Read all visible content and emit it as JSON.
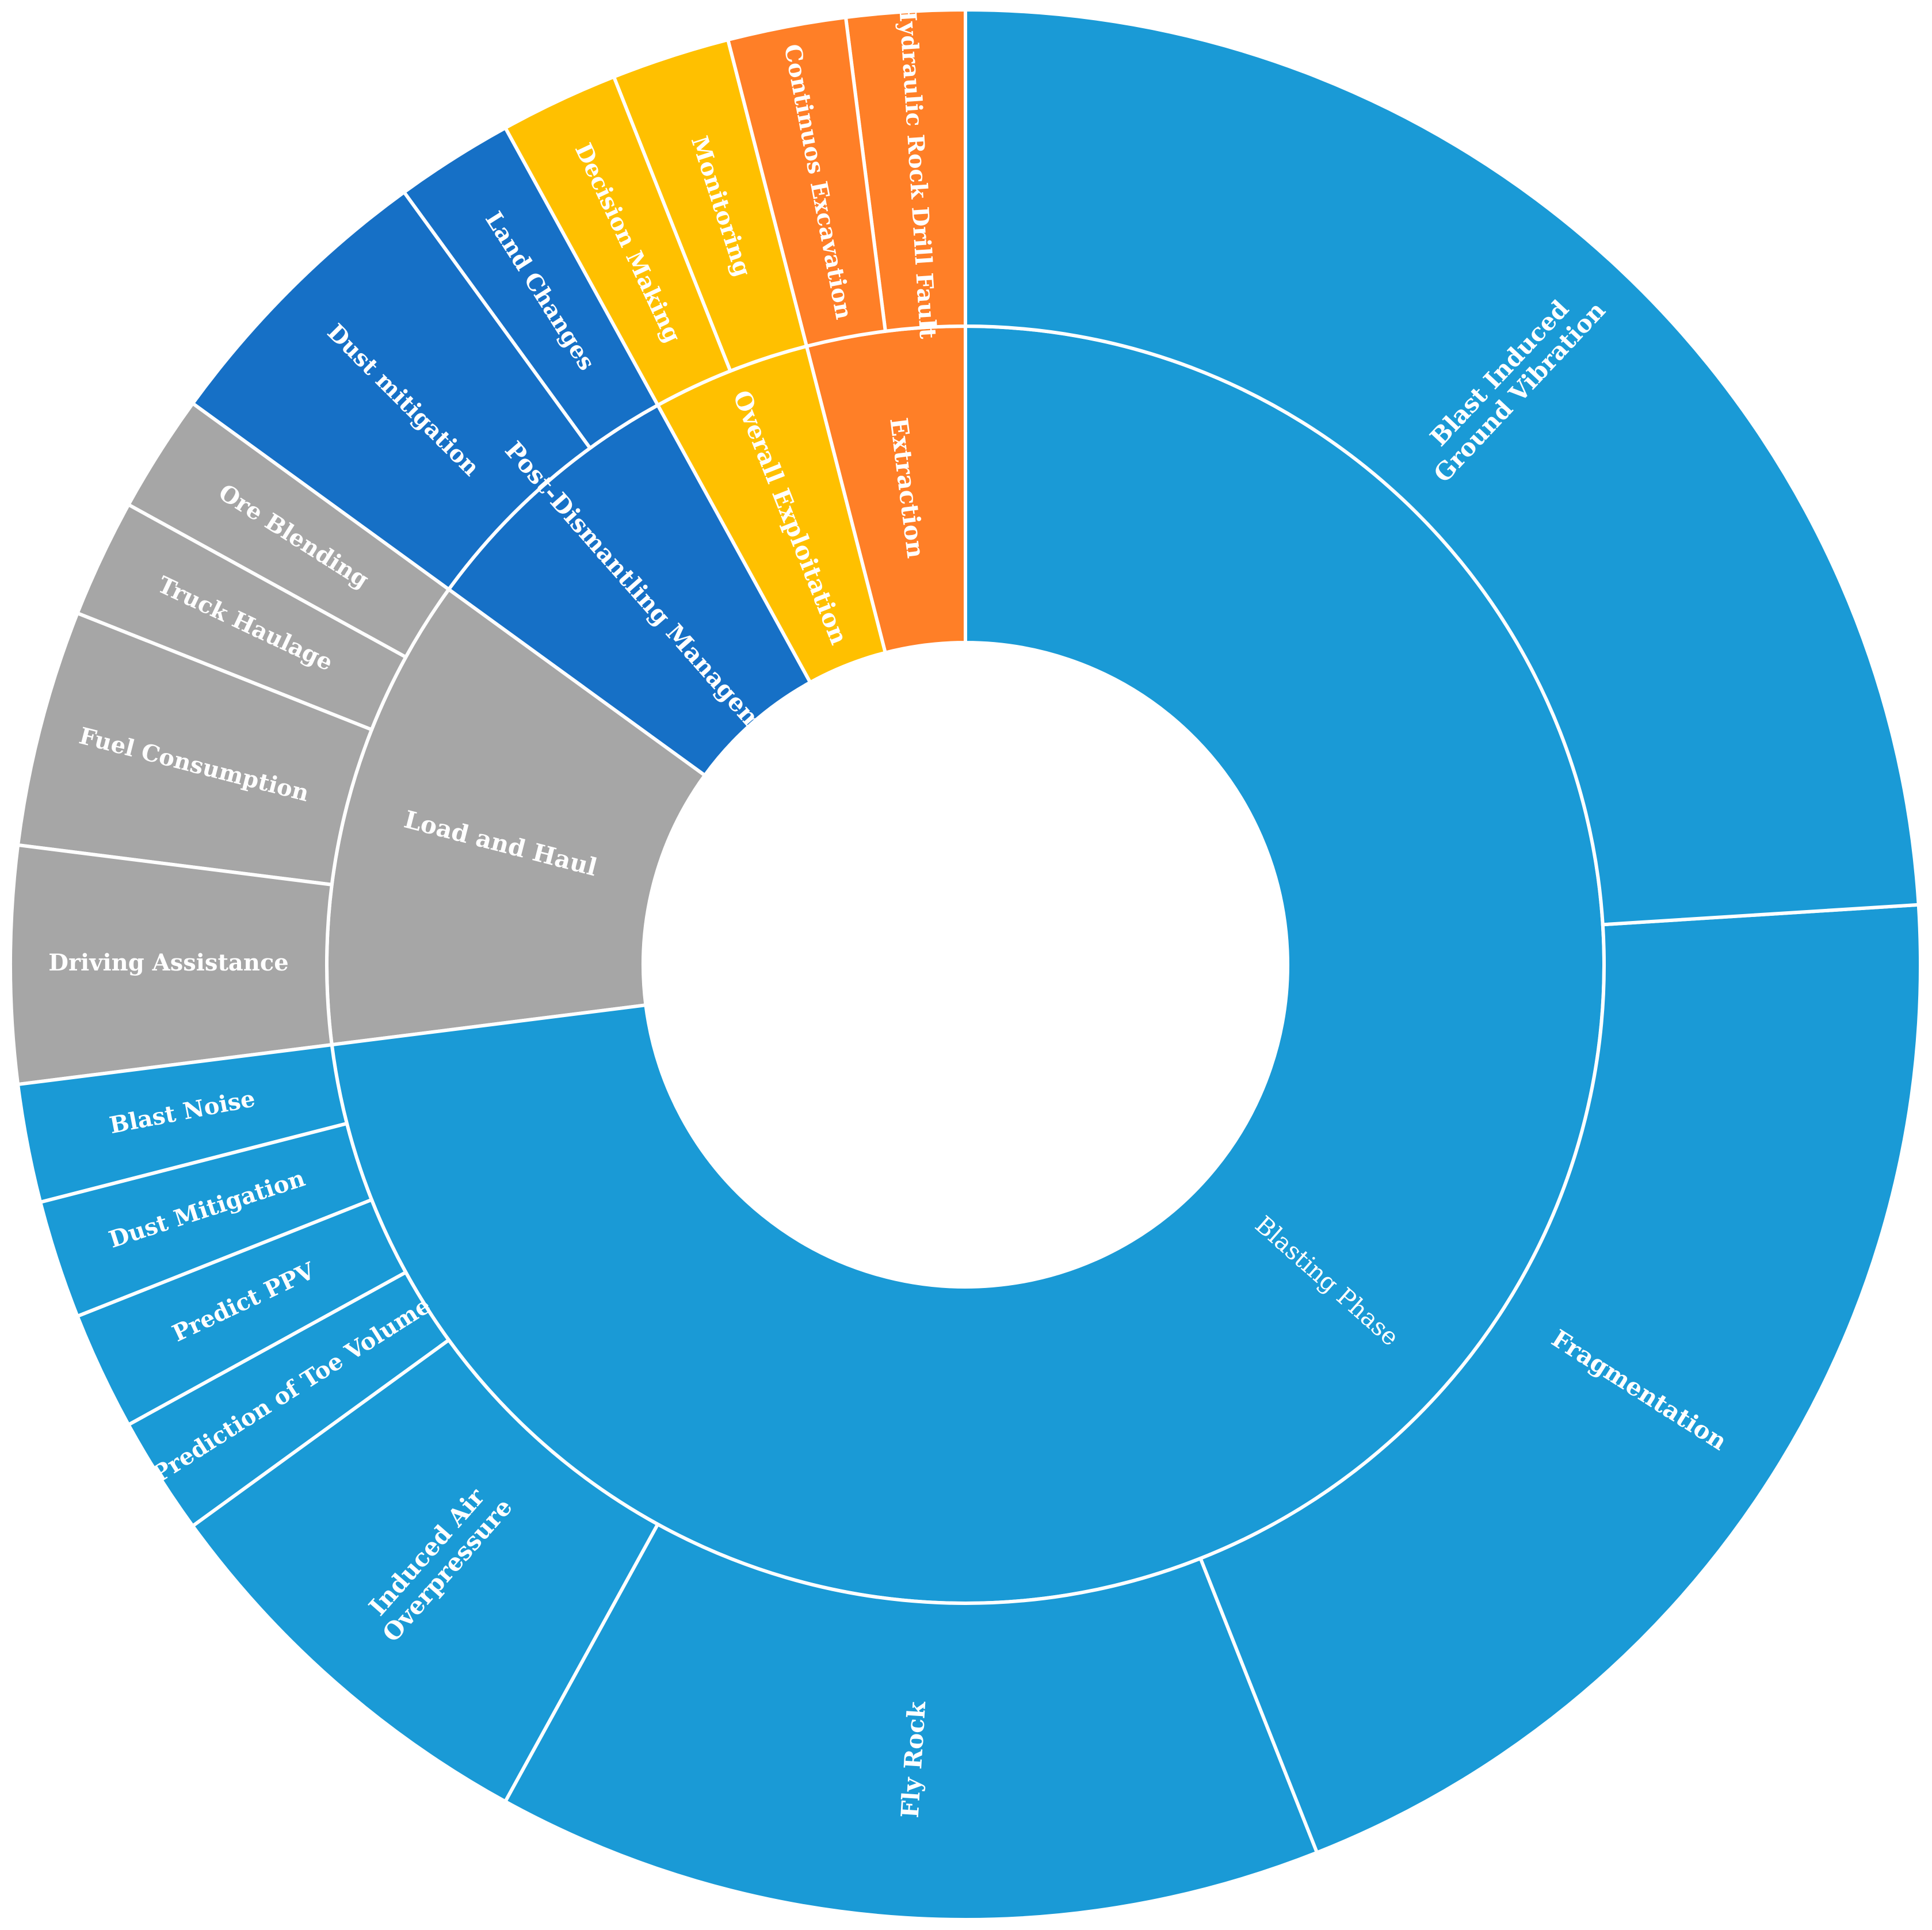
{
  "chart_data": {
    "type": "sunburst",
    "colors": {
      "Blasting Phase": "#1A9AD6",
      "Load and Haul": "#A6A6A6",
      "Post-Dismantling Management": "#1670C6",
      "Overall Exploitation": "#FFC000",
      "Extraction": "#FF7F27",
      "separator": "#ffffff"
    },
    "inner": [
      {
        "name": "Extraction",
        "value": 4
      },
      {
        "name": "Overall Exploitation",
        "value": 4
      },
      {
        "name": "Post-Dismantling Management",
        "value": 7
      },
      {
        "name": "Load and Haul",
        "value": 12
      },
      {
        "name": "Blasting Phase",
        "value": 73
      }
    ],
    "outer": [
      {
        "parent": "Extraction",
        "name": "Hydraulic Rock Drill Fault",
        "value": 2
      },
      {
        "parent": "Extraction",
        "name": "Continuos Excavation",
        "value": 2
      },
      {
        "parent": "Overall Exploitation",
        "name": "Monitoring",
        "value": 2
      },
      {
        "parent": "Overall Exploitation",
        "name": "Decision Making",
        "value": 2
      },
      {
        "parent": "Post-Dismantling Management",
        "name": "Land Changes",
        "value": 2
      },
      {
        "parent": "Post-Dismantling Management",
        "name": "Dust mitigation",
        "value": 5
      },
      {
        "parent": "Load and Haul",
        "name": "Ore Blending",
        "value": 2
      },
      {
        "parent": "Load and Haul",
        "name": "Truck Haulage",
        "value": 2
      },
      {
        "parent": "Load and Haul",
        "name": "Fuel Consumption",
        "value": 4
      },
      {
        "parent": "Load and Haul",
        "name": "Driving Assistance",
        "value": 4
      },
      {
        "parent": "Blasting Phase",
        "name": "Blast Noise",
        "value": 2
      },
      {
        "parent": "Blasting Phase",
        "name": "Dust Mitigation",
        "value": 2
      },
      {
        "parent": "Blasting Phase",
        "name": "Predict PPV",
        "value": 2
      },
      {
        "parent": "Blasting Phase",
        "name": "Prediction of Toe Volume",
        "value": 2
      },
      {
        "parent": "Blasting Phase",
        "name": "Induced Air Overpressure",
        "value": 7
      },
      {
        "parent": "Blasting Phase",
        "name": "Fly Rock",
        "value": 14
      },
      {
        "parent": "Blasting Phase",
        "name": "Fragmentation",
        "value": 20
      },
      {
        "parent": "Blasting Phase",
        "name": "Blast Induced Ground Vibration",
        "value": 24
      }
    ]
  }
}
